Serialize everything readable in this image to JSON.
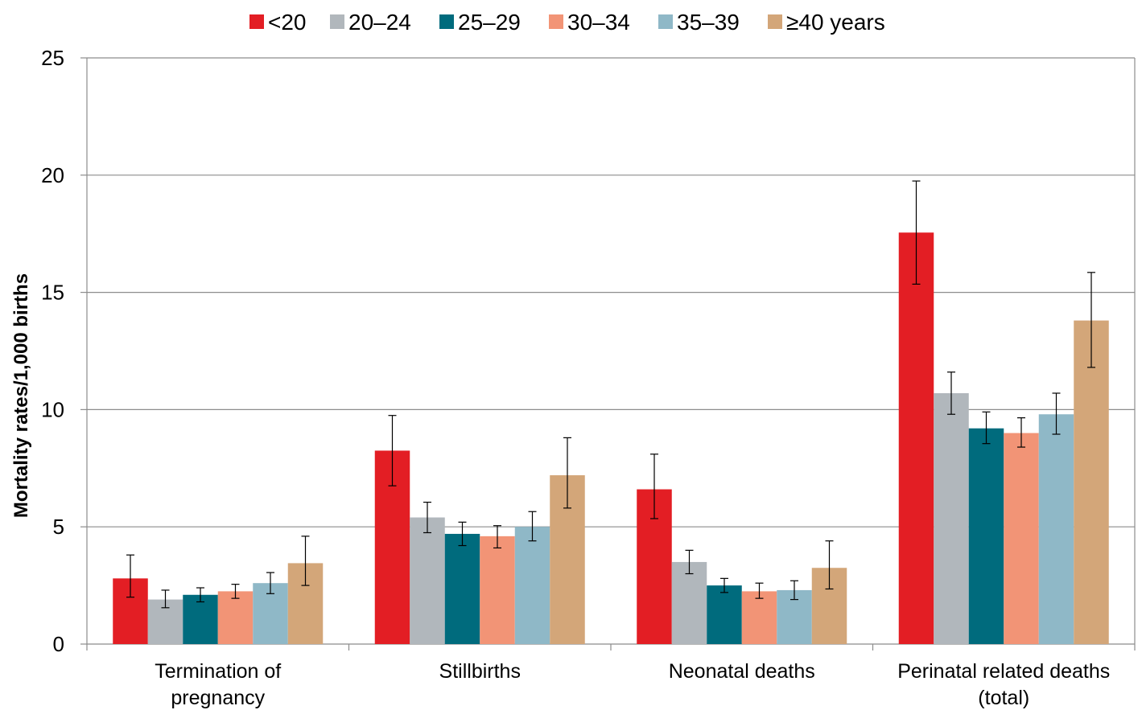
{
  "chart_data": {
    "type": "bar",
    "title": "",
    "xlabel": "",
    "ylabel": "Mortality rates/1,000 births",
    "ylim": [
      0,
      25
    ],
    "yticks": [
      0,
      5,
      10,
      15,
      20,
      25
    ],
    "grid": true,
    "legend_position": "top-center",
    "categories": [
      [
        "Termination of",
        "pregnancy"
      ],
      [
        "Stillbirths"
      ],
      [
        "Neonatal deaths"
      ],
      [
        "Perinatal related deaths",
        "(total)"
      ]
    ],
    "series": [
      {
        "name": "<20",
        "color": "#e31e24",
        "values": [
          2.8,
          8.25,
          6.6,
          17.55
        ],
        "err_low": [
          2.0,
          6.75,
          5.35,
          15.35
        ],
        "err_high": [
          3.8,
          9.75,
          8.1,
          19.75
        ]
      },
      {
        "name": "20–24",
        "color": "#b1b7bc",
        "values": [
          1.9,
          5.4,
          3.5,
          10.7
        ],
        "err_low": [
          1.55,
          4.75,
          3.0,
          9.8
        ],
        "err_high": [
          2.3,
          6.05,
          4.0,
          11.6
        ]
      },
      {
        "name": "25–29",
        "color": "#006b7d",
        "values": [
          2.1,
          4.7,
          2.5,
          9.2
        ],
        "err_low": [
          1.8,
          4.2,
          2.2,
          8.55
        ],
        "err_high": [
          2.4,
          5.2,
          2.8,
          9.9
        ]
      },
      {
        "name": "30–34",
        "color": "#f29476",
        "values": [
          2.25,
          4.6,
          2.25,
          9.0
        ],
        "err_low": [
          1.95,
          4.1,
          1.95,
          8.4
        ],
        "err_high": [
          2.55,
          5.05,
          2.6,
          9.65
        ]
      },
      {
        "name": "35–39",
        "color": "#8fb8c7",
        "values": [
          2.6,
          5.0,
          2.3,
          9.8
        ],
        "err_low": [
          2.15,
          4.4,
          1.9,
          8.95
        ],
        "err_high": [
          3.05,
          5.65,
          2.7,
          10.7
        ]
      },
      {
        "name": "≥40 years",
        "color": "#d3a679",
        "values": [
          3.45,
          7.2,
          3.25,
          13.8
        ],
        "err_low": [
          2.5,
          5.8,
          2.35,
          11.8
        ],
        "err_high": [
          4.6,
          8.8,
          4.4,
          15.85
        ]
      }
    ]
  }
}
